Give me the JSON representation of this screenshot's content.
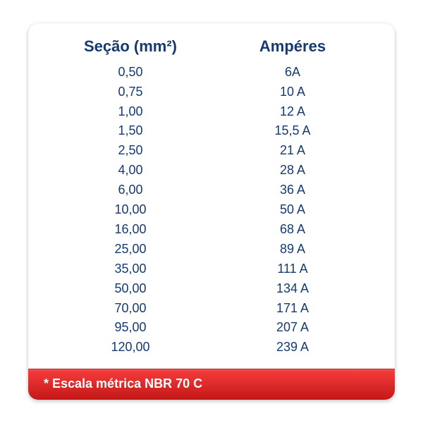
{
  "table": {
    "columns": [
      "Seção (mm²)",
      "Ampéres"
    ],
    "rows": [
      [
        "0,50",
        "6A"
      ],
      [
        "0,75",
        "10 A"
      ],
      [
        "1,00",
        "12 A"
      ],
      [
        "1,50",
        "15,5 A"
      ],
      [
        "2,50",
        "21 A"
      ],
      [
        "4,00",
        "28 A"
      ],
      [
        "6,00",
        "36 A"
      ],
      [
        "10,00",
        "50 A"
      ],
      [
        "16,00",
        "68 A"
      ],
      [
        "25,00",
        "89 A"
      ],
      [
        "35,00",
        "111 A"
      ],
      [
        "50,00",
        "134 A"
      ],
      [
        "70,00",
        "171 A"
      ],
      [
        "95,00",
        "207 A"
      ],
      [
        "120,00",
        "239 A"
      ]
    ],
    "header_color": "#153a72",
    "cell_color": "#153a72",
    "header_fontsize": 22,
    "cell_fontsize": 18
  },
  "footer": {
    "text": "* Escala métrica NBR 70 C",
    "bg_gradient_top": "#f73c3c",
    "bg_gradient_bottom": "#c31818",
    "text_color": "#ffffff"
  },
  "card": {
    "background": "#ffffff",
    "border_radius": 14
  }
}
